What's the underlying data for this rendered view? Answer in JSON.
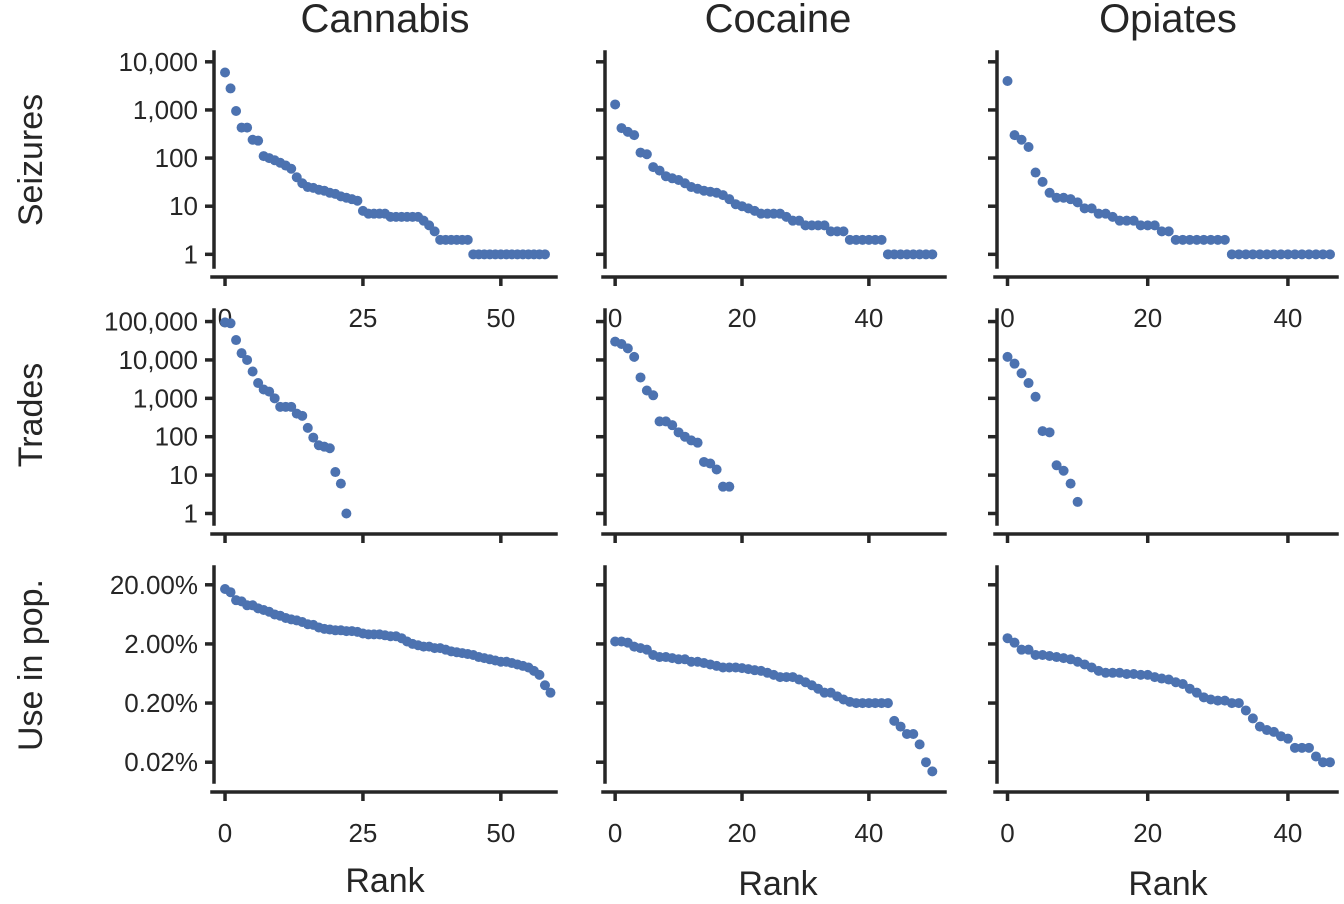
{
  "figure": {
    "x_axis_label": "Rank",
    "columns": [
      "Cannabis",
      "Cocaine",
      "Opiates"
    ],
    "rows": [
      "Seizures",
      "Trades",
      "Use in pop."
    ],
    "marker_color": "#4c72b0"
  },
  "chart_data": [
    {
      "type": "scatter",
      "drug": "Cannabis",
      "metric": "Seizures",
      "scale": "log",
      "xlim": [
        -2,
        60
      ],
      "ylim": [
        0.6,
        16000
      ],
      "xticks": [
        0,
        25,
        50
      ],
      "xtick_labels": [
        "0",
        "25",
        "50"
      ],
      "yticks": [
        1,
        10,
        100,
        1000,
        10000
      ],
      "ytick_labels": [
        "1",
        "10",
        "100",
        "1,000",
        "10,000"
      ],
      "y": [
        6000,
        2800,
        950,
        430,
        430,
        240,
        230,
        110,
        100,
        90,
        80,
        70,
        60,
        40,
        30,
        25,
        24,
        22,
        21,
        19,
        18,
        16,
        15,
        14,
        13,
        8,
        7,
        7,
        7,
        7,
        6,
        6,
        6,
        6,
        6,
        6,
        5,
        4,
        3,
        2,
        2,
        2,
        2,
        2,
        2,
        1,
        1,
        1,
        1,
        1,
        1,
        1,
        1,
        1,
        1,
        1,
        1,
        1,
        1
      ]
    },
    {
      "type": "scatter",
      "drug": "Cocaine",
      "metric": "Seizures",
      "scale": "log",
      "xlim": [
        -1.6,
        52
      ],
      "ylim": [
        0.6,
        16000
      ],
      "xticks": [
        0,
        20,
        40
      ],
      "xtick_labels": [
        "0",
        "20",
        "40"
      ],
      "yticks": [
        1,
        10,
        100,
        1000,
        10000
      ],
      "ytick_labels": [
        "",
        "",
        "",
        "",
        ""
      ],
      "y": [
        1300,
        420,
        350,
        300,
        130,
        120,
        65,
        55,
        42,
        38,
        35,
        30,
        25,
        23,
        21,
        20,
        19,
        17,
        14,
        11,
        10,
        9,
        8,
        7,
        7,
        7,
        7,
        6,
        5,
        5,
        4,
        4,
        4,
        4,
        3,
        3,
        3,
        2,
        2,
        2,
        2,
        2,
        2,
        1,
        1,
        1,
        1,
        1,
        1,
        1,
        1
      ]
    },
    {
      "type": "scatter",
      "drug": "Opiates",
      "metric": "Seizures",
      "scale": "log",
      "xlim": [
        -1.5,
        47
      ],
      "ylim": [
        0.6,
        16000
      ],
      "xticks": [
        0,
        20,
        40
      ],
      "xtick_labels": [
        "0",
        "20",
        "40"
      ],
      "yticks": [
        1,
        10,
        100,
        1000,
        10000
      ],
      "ytick_labels": [
        "",
        "",
        "",
        "",
        ""
      ],
      "y": [
        4000,
        300,
        240,
        170,
        50,
        32,
        19,
        15,
        15,
        14,
        12,
        9,
        9,
        7,
        7,
        6,
        5,
        5,
        5,
        4,
        4,
        4,
        3,
        3,
        2,
        2,
        2,
        2,
        2,
        2,
        2,
        2,
        1,
        1,
        1,
        1,
        1,
        1,
        1,
        1,
        1,
        1,
        1,
        1,
        1,
        1,
        1
      ]
    },
    {
      "type": "scatter",
      "drug": "Cannabis",
      "metric": "Trades",
      "scale": "log",
      "xlim": [
        -2,
        60
      ],
      "ylim": [
        0.6,
        200000
      ],
      "xticks": [
        0,
        25,
        50
      ],
      "xtick_labels": [
        "",
        "",
        ""
      ],
      "yticks": [
        1,
        10,
        100,
        1000,
        10000,
        100000
      ],
      "ytick_labels": [
        "1",
        "10",
        "100",
        "1,000",
        "10,000",
        "100,000"
      ],
      "y": [
        95000,
        90000,
        33000,
        15000,
        10000,
        5000,
        2500,
        1700,
        1500,
        1000,
        600,
        600,
        600,
        400,
        350,
        170,
        95,
        60,
        55,
        50,
        12,
        6,
        1
      ]
    },
    {
      "type": "scatter",
      "drug": "Cocaine",
      "metric": "Trades",
      "scale": "log",
      "xlim": [
        -1.6,
        52
      ],
      "ylim": [
        0.6,
        200000
      ],
      "xticks": [
        0,
        20,
        40
      ],
      "xtick_labels": [
        "",
        "",
        ""
      ],
      "yticks": [
        1,
        10,
        100,
        1000,
        10000,
        100000
      ],
      "ytick_labels": [
        "",
        "",
        "",
        "",
        "",
        ""
      ],
      "y": [
        30000,
        26000,
        20000,
        12000,
        3500,
        1600,
        1200,
        250,
        250,
        200,
        130,
        100,
        80,
        70,
        22,
        20,
        14,
        5,
        5
      ]
    },
    {
      "type": "scatter",
      "drug": "Opiates",
      "metric": "Trades",
      "scale": "log",
      "xlim": [
        -1.5,
        47
      ],
      "ylim": [
        0.6,
        200000
      ],
      "xticks": [
        0,
        20,
        40
      ],
      "xtick_labels": [
        "",
        "",
        ""
      ],
      "yticks": [
        1,
        10,
        100,
        1000,
        10000,
        100000
      ],
      "ytick_labels": [
        "",
        "",
        "",
        "",
        "",
        ""
      ],
      "y": [
        12000,
        8000,
        4500,
        2500,
        1100,
        140,
        130,
        18,
        13,
        6,
        2
      ]
    },
    {
      "type": "scatter",
      "drug": "Cannabis",
      "metric": "Use in pop.",
      "scale": "log",
      "unit": "percent",
      "xlim": [
        -2,
        60
      ],
      "ylim": [
        0.01,
        40
      ],
      "xticks": [
        0,
        25,
        50
      ],
      "xtick_labels": [
        "0",
        "25",
        "50"
      ],
      "yticks": [
        0.02,
        0.2,
        2,
        20
      ],
      "ytick_labels": [
        "0.02%",
        "0.20%",
        "2.00%",
        "20.00%"
      ],
      "y": [
        17,
        15,
        11,
        10.5,
        9,
        9,
        8,
        7.5,
        7,
        6.3,
        6,
        5.5,
        5.2,
        5,
        4.7,
        4.3,
        4.2,
        3.8,
        3.6,
        3.5,
        3.4,
        3.4,
        3.3,
        3.3,
        3.2,
        3,
        2.9,
        2.9,
        2.9,
        2.8,
        2.7,
        2.7,
        2.5,
        2.2,
        2.0,
        1.9,
        1.8,
        1.8,
        1.7,
        1.7,
        1.6,
        1.5,
        1.45,
        1.4,
        1.35,
        1.3,
        1.2,
        1.15,
        1.1,
        1.05,
        1.0,
        1.0,
        0.95,
        0.9,
        0.85,
        0.8,
        0.7,
        0.6,
        0.4,
        0.3
      ]
    },
    {
      "type": "scatter",
      "drug": "Cocaine",
      "metric": "Use in pop.",
      "scale": "log",
      "unit": "percent",
      "xlim": [
        -1.6,
        52
      ],
      "ylim": [
        0.01,
        40
      ],
      "xticks": [
        0,
        20,
        40
      ],
      "xtick_labels": [
        "0",
        "20",
        "40"
      ],
      "yticks": [
        0.02,
        0.2,
        2,
        20
      ],
      "ytick_labels": [
        "",
        "",
        "",
        ""
      ],
      "y": [
        2.2,
        2.2,
        2.1,
        1.8,
        1.7,
        1.6,
        1.3,
        1.2,
        1.2,
        1.15,
        1.1,
        1.1,
        1.0,
        1.0,
        0.95,
        0.9,
        0.85,
        0.8,
        0.8,
        0.8,
        0.78,
        0.75,
        0.72,
        0.7,
        0.65,
        0.6,
        0.55,
        0.55,
        0.55,
        0.5,
        0.45,
        0.4,
        0.35,
        0.3,
        0.3,
        0.26,
        0.23,
        0.21,
        0.2,
        0.2,
        0.2,
        0.2,
        0.2,
        0.2,
        0.1,
        0.08,
        0.06,
        0.06,
        0.04,
        0.02,
        0.014
      ]
    },
    {
      "type": "scatter",
      "drug": "Opiates",
      "metric": "Use in pop.",
      "scale": "log",
      "unit": "percent",
      "xlim": [
        -1.5,
        47
      ],
      "ylim": [
        0.01,
        40
      ],
      "xticks": [
        0,
        20,
        40
      ],
      "xtick_labels": [
        "0",
        "20",
        "40"
      ],
      "yticks": [
        0.02,
        0.2,
        2,
        20
      ],
      "ytick_labels": [
        "",
        "",
        "",
        ""
      ],
      "y": [
        2.5,
        2.1,
        1.6,
        1.6,
        1.3,
        1.3,
        1.25,
        1.2,
        1.15,
        1.1,
        1.0,
        0.9,
        0.8,
        0.7,
        0.65,
        0.65,
        0.65,
        0.62,
        0.62,
        0.6,
        0.6,
        0.55,
        0.52,
        0.5,
        0.45,
        0.42,
        0.35,
        0.3,
        0.25,
        0.23,
        0.22,
        0.22,
        0.2,
        0.2,
        0.15,
        0.11,
        0.08,
        0.07,
        0.065,
        0.055,
        0.05,
        0.035,
        0.035,
        0.035,
        0.025,
        0.02,
        0.02
      ]
    }
  ]
}
